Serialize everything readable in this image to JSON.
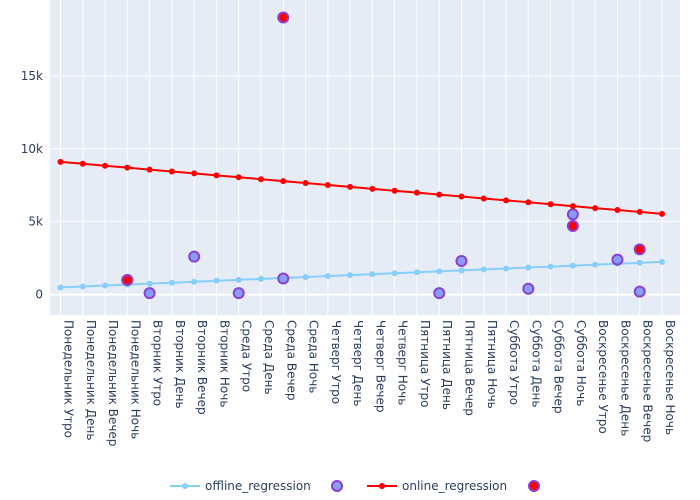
{
  "chart_data": {
    "type": "scatter",
    "title": "",
    "xlabel": "",
    "ylabel": "",
    "categories": [
      "Понедельник Утро",
      "Понедельник День",
      "Понедельник Вечер",
      "Понедельник Ночь",
      "Вторник Утро",
      "Вторник День",
      "Вторник Вечер",
      "Вторник Ночь",
      "Среда Утро",
      "Среда День",
      "Среда Вечер",
      "Среда Ночь",
      "Четверг Утро",
      "Четверг День",
      "Четверг Вечер",
      "Четверг Ночь",
      "Пятница Утро",
      "Пятница День",
      "Пятница Вечер",
      "Пятница Ночь",
      "Суббота Утро",
      "Суббота День",
      "Суббота Вечер",
      "Суббота Ночь",
      "Воскресенье Утро",
      "Воскресенье День",
      "Воскресенье Вечер",
      "Воскресенье Ночь"
    ],
    "y_ticks": [
      0,
      5000,
      10000,
      15000
    ],
    "y_tick_labels": [
      "0",
      "5k",
      "10k",
      "15k"
    ],
    "ylim": [
      -1400,
      20200
    ],
    "grid": true,
    "legend_placement": "bottom",
    "series": [
      {
        "name": "offline_regression",
        "mode": "lines+markers",
        "color": "#87cefa",
        "values": [
          490,
          555,
          620,
          685,
          750,
          815,
          880,
          945,
          1010,
          1075,
          1140,
          1205,
          1270,
          1335,
          1400,
          1465,
          1530,
          1595,
          1660,
          1725,
          1790,
          1855,
          1920,
          1985,
          2050,
          2115,
          2180,
          2245
        ]
      },
      {
        "name": "",
        "mode": "markers",
        "color": "#8a9df5",
        "outline": "#8a3fd6",
        "points": [
          {
            "x": "Понедельник Ночь",
            "y": 1000
          },
          {
            "x": "Вторник Утро",
            "y": 100
          },
          {
            "x": "Вторник Вечер",
            "y": 2600
          },
          {
            "x": "Среда Утро",
            "y": 100
          },
          {
            "x": "Среда Вечер",
            "y": 1100
          },
          {
            "x": "Пятница День",
            "y": 100
          },
          {
            "x": "Пятница Вечер",
            "y": 2300
          },
          {
            "x": "Суббота День",
            "y": 400
          },
          {
            "x": "Суббота Ночь",
            "y": 5500
          },
          {
            "x": "Воскресенье День",
            "y": 2400
          },
          {
            "x": "Воскресенье Вечер",
            "y": 200
          }
        ]
      },
      {
        "name": "online_regression",
        "mode": "lines+markers",
        "color": "#ff0000",
        "values": [
          9100,
          8968,
          8836,
          8704,
          8572,
          8440,
          8308,
          8176,
          8044,
          7912,
          7780,
          7648,
          7516,
          7384,
          7252,
          7120,
          6988,
          6856,
          6724,
          6592,
          6460,
          6328,
          6196,
          6064,
          5932,
          5800,
          5668,
          5536
        ]
      },
      {
        "name": "",
        "mode": "markers",
        "color": "#ff0000",
        "outline": "#8a3fd6",
        "points": [
          {
            "x": "Понедельник Ночь",
            "y": 1000
          },
          {
            "x": "Среда Вечер",
            "y": 19000
          },
          {
            "x": "Суббота Ночь",
            "y": 4700
          },
          {
            "x": "Воскресенье Вечер",
            "y": 3100
          }
        ]
      }
    ]
  }
}
